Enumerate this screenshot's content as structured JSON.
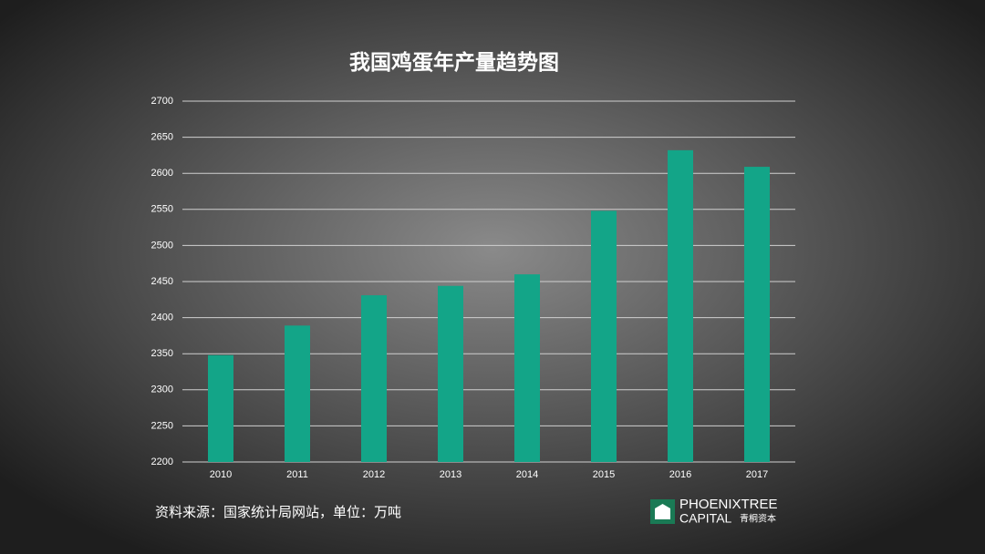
{
  "chart_data": {
    "type": "bar",
    "title": "我国鸡蛋年产量趋势图",
    "categories": [
      "2010",
      "2011",
      "2012",
      "2013",
      "2014",
      "2015",
      "2016",
      "2017"
    ],
    "values": [
      2348,
      2389,
      2431,
      2444,
      2460,
      2548,
      2632,
      2609
    ],
    "color": "#13a588",
    "ylim": [
      2200,
      2700
    ],
    "yticks": [
      2200,
      2250,
      2300,
      2350,
      2400,
      2450,
      2500,
      2550,
      2600,
      2650,
      2700
    ],
    "grid": true
  },
  "source": "资料来源：国家统计局网站，单位：万吨",
  "logo": {
    "name": "PHOENIXTREE",
    "sub": "CAPITAL",
    "cn": "青桐资本"
  }
}
